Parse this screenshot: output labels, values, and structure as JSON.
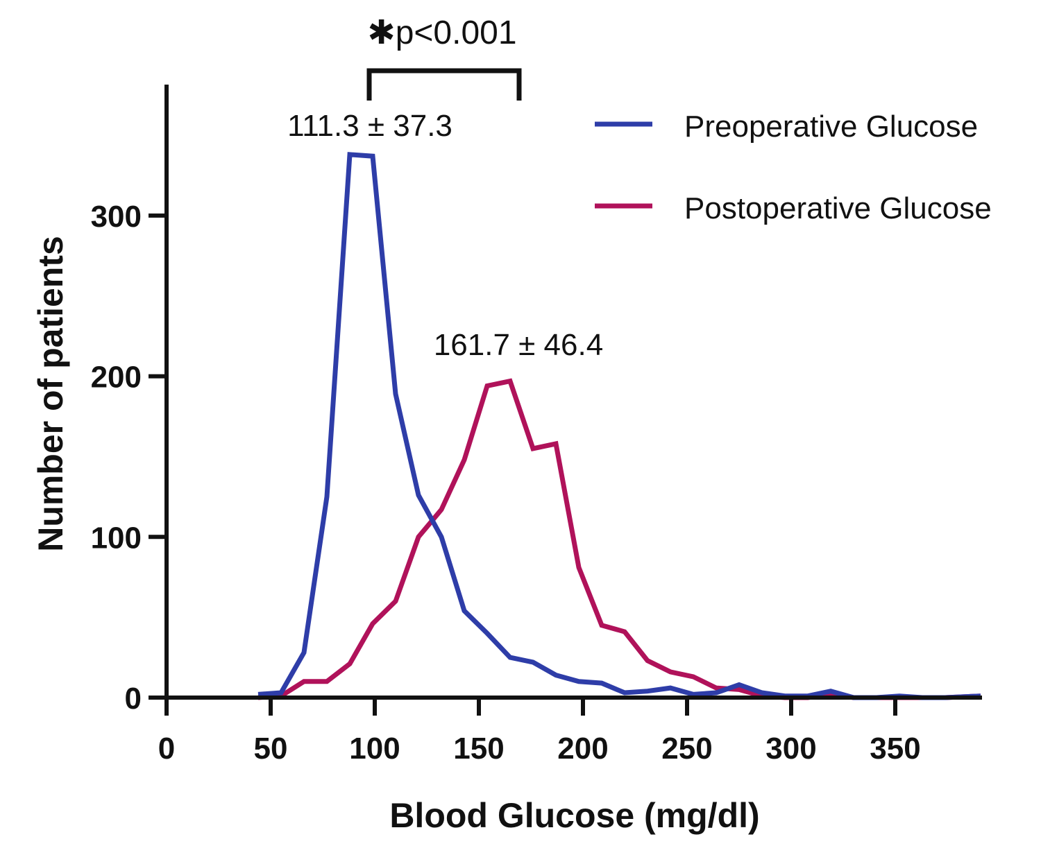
{
  "chart_data": {
    "type": "line",
    "title": "",
    "xlabel": "Blood Glucose (mg/dl)",
    "ylabel": "Number of patients",
    "xlim": [
      0,
      391
    ],
    "ylim": [
      0,
      370
    ],
    "x_ticks": [
      0,
      50,
      100,
      150,
      200,
      250,
      300,
      350
    ],
    "x_tick_labels": [
      "0",
      "50",
      "100",
      "150",
      "200",
      "250",
      "300",
      "350"
    ],
    "y_ticks": [
      0,
      100,
      200,
      300
    ],
    "y_tick_labels": [
      "0",
      "100",
      "200",
      "300"
    ],
    "grid": false,
    "legend_position": "top-right",
    "series": [
      {
        "name": "Preoperative Glucose",
        "color": "#2E3DA8",
        "x": [
          44,
          55,
          66,
          77,
          88,
          99,
          110,
          121,
          132,
          143,
          154,
          165,
          176,
          187,
          198,
          209,
          220,
          231,
          242,
          253,
          264,
          275,
          286,
          297,
          308,
          319,
          330,
          341,
          352,
          363,
          374,
          391
        ],
        "y": [
          2,
          3,
          28,
          125,
          338,
          337,
          189,
          126,
          100,
          54,
          40,
          25,
          22,
          14,
          10,
          9,
          3,
          4,
          6,
          2,
          3,
          8,
          3,
          1,
          1,
          4,
          0,
          0,
          1,
          0,
          0,
          1
        ]
      },
      {
        "name": "Postoperative Glucose",
        "color": "#B0125A",
        "x": [
          44,
          55,
          66,
          77,
          88,
          99,
          110,
          121,
          132,
          143,
          154,
          165,
          176,
          187,
          198,
          209,
          220,
          231,
          242,
          253,
          264,
          275,
          286,
          297,
          308,
          319,
          330,
          341,
          352,
          363,
          374,
          391
        ],
        "y": [
          0,
          1,
          10,
          10,
          21,
          46,
          60,
          100,
          117,
          148,
          194,
          197,
          155,
          158,
          81,
          45,
          41,
          23,
          16,
          13,
          6,
          5,
          1,
          0,
          0,
          2,
          0,
          0,
          0,
          0,
          0,
          1
        ]
      }
    ],
    "annotations": [
      {
        "text": "111.3 ± 37.3",
        "series": "Preoperative Glucose"
      },
      {
        "text": "161.7 ± 46.4",
        "series": "Postoperative Glucose"
      },
      {
        "text": "✱p<0.001",
        "type": "significance-bracket",
        "from": 98,
        "to": 169
      }
    ]
  }
}
